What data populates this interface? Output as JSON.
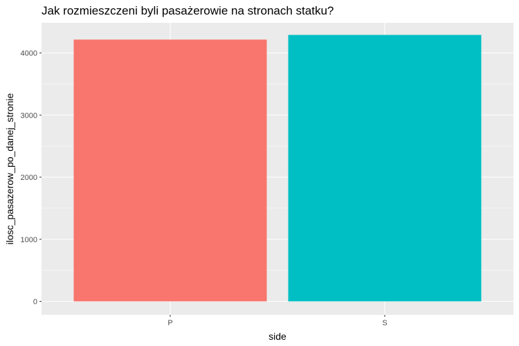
{
  "chart_data": {
    "type": "bar",
    "title": "Jak rozmieszczeni byli pasażerowie na stronach statku?",
    "xlabel": "side",
    "ylabel": "ilosc_pasazerow_po_danej_stronie",
    "categories": [
      "P",
      "S"
    ],
    "values": [
      4215,
      4290
    ],
    "colors": [
      "#F8766D",
      "#00BFC4"
    ],
    "ylim": [
      0,
      4500
    ],
    "yticks": [
      0,
      1000,
      2000,
      3000,
      4000
    ],
    "grid": true,
    "legend": "none",
    "panel_background": "#EBEBEB"
  }
}
